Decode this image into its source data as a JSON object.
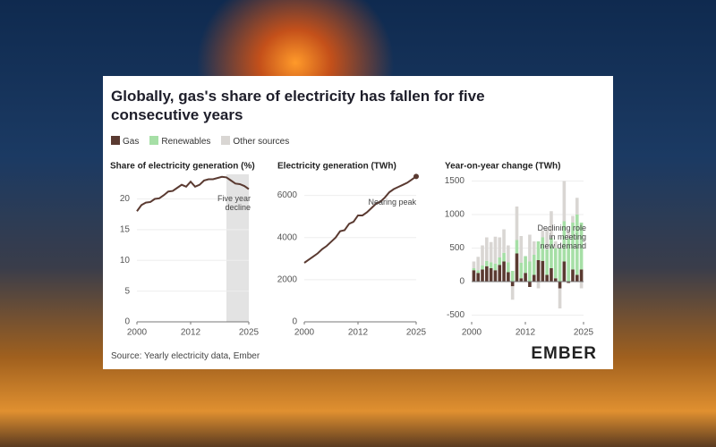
{
  "title": "Globally, gas's share of electricity has fallen for five consecutive years",
  "source": "Source: Yearly electricity data, Ember",
  "brand": "EMBER",
  "chart_data": [
    {
      "type": "line",
      "title": "Share of electricity generation (%)",
      "x": [
        2000,
        2001,
        2002,
        2003,
        2004,
        2005,
        2006,
        2007,
        2008,
        2009,
        2010,
        2011,
        2012,
        2013,
        2014,
        2015,
        2016,
        2017,
        2018,
        2019,
        2020,
        2021,
        2022,
        2023,
        2024,
        2025
      ],
      "series": [
        {
          "name": "Gas",
          "color": "#5a3a31",
          "values": [
            18.0,
            19.0,
            19.4,
            19.5,
            20.0,
            20.1,
            20.6,
            21.2,
            21.3,
            21.8,
            22.3,
            22.0,
            22.8,
            22.0,
            22.3,
            23.0,
            23.2,
            23.2,
            23.4,
            23.6,
            23.5,
            23.0,
            22.5,
            22.4,
            22.1,
            21.6
          ]
        }
      ],
      "xlim": [
        2000,
        2025
      ],
      "xticks": [
        2000,
        2012,
        2025
      ],
      "ylim": [
        0,
        24
      ],
      "yticks": [
        0,
        5,
        10,
        15,
        20
      ],
      "grid": true,
      "shade_x": [
        2020,
        2025
      ],
      "annotation": "Five year decline"
    },
    {
      "type": "line",
      "title": "Electricity generation (TWh)",
      "x": [
        2000,
        2001,
        2002,
        2003,
        2004,
        2005,
        2006,
        2007,
        2008,
        2009,
        2010,
        2011,
        2012,
        2013,
        2014,
        2015,
        2016,
        2017,
        2018,
        2019,
        2020,
        2021,
        2022,
        2023,
        2024,
        2025
      ],
      "series": [
        {
          "name": "Gas",
          "color": "#5a3a31",
          "values": [
            2800,
            2950,
            3100,
            3250,
            3450,
            3600,
            3800,
            4000,
            4300,
            4350,
            4650,
            4750,
            5050,
            5050,
            5200,
            5400,
            5600,
            5700,
            5900,
            6150,
            6300,
            6400,
            6500,
            6600,
            6750,
            6900
          ]
        }
      ],
      "xlim": [
        2000,
        2025
      ],
      "xticks": [
        2000,
        2012,
        2025
      ],
      "ylim": [
        0,
        7000
      ],
      "yticks": [
        0,
        2000,
        4000,
        6000
      ],
      "grid": true,
      "end_marker": true,
      "annotation": "Nearing peak"
    },
    {
      "type": "stacked_bar",
      "title": "Year-on-year change (TWh)",
      "x": [
        2000,
        2001,
        2002,
        2003,
        2004,
        2005,
        2006,
        2007,
        2008,
        2009,
        2010,
        2011,
        2012,
        2013,
        2014,
        2015,
        2016,
        2017,
        2018,
        2019,
        2020,
        2021,
        2022,
        2023,
        2024,
        2025
      ],
      "series": [
        {
          "name": "Gas",
          "color": "#5a3a31",
          "values": [
            170,
            130,
            180,
            230,
            200,
            170,
            250,
            300,
            140,
            -70,
            420,
            50,
            130,
            -80,
            100,
            320,
            310,
            100,
            200,
            50,
            -100,
            300,
            -20,
            180,
            100,
            180
          ]
        },
        {
          "name": "Renewables",
          "color": "#a6dfa6",
          "values": [
            30,
            40,
            60,
            80,
            90,
            100,
            110,
            130,
            150,
            160,
            200,
            230,
            250,
            300,
            300,
            280,
            350,
            380,
            450,
            450,
            500,
            600,
            650,
            700,
            900,
            700
          ]
        },
        {
          "name": "Other sources",
          "color": "#d9d6d3",
          "values": [
            100,
            200,
            300,
            350,
            300,
            400,
            300,
            350,
            250,
            -200,
            500,
            400,
            0,
            400,
            200,
            -100,
            100,
            300,
            400,
            100,
            -300,
            600,
            100,
            100,
            250,
            -100
          ]
        }
      ],
      "xlim": [
        2000,
        2025
      ],
      "xticks": [
        2000,
        2012,
        2025
      ],
      "ylim": [
        -600,
        1600
      ],
      "yticks": [
        -500,
        0,
        500,
        1000,
        1500
      ],
      "grid": true,
      "annotation": "Declining role in meeting new demand"
    }
  ]
}
